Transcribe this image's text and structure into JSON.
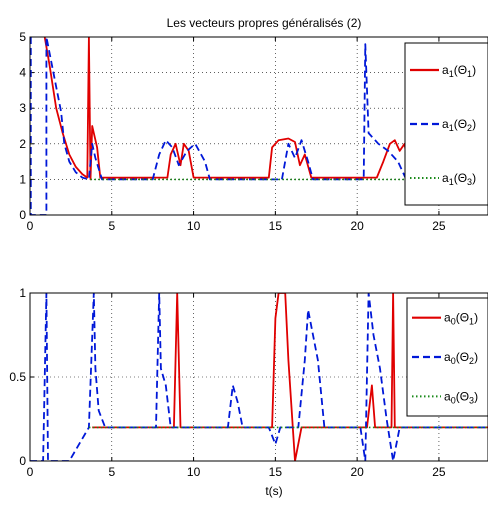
{
  "chart_data": [
    {
      "type": "line",
      "title": "Les vecteurs propres généralisés (2)",
      "xlabel": "",
      "ylabel": "",
      "xlim": [
        0,
        28
      ],
      "ylim": [
        0,
        5
      ],
      "xticks": [
        "0",
        "5",
        "10",
        "15",
        "20",
        "25"
      ],
      "yticks": [
        "0",
        "1",
        "2",
        "3",
        "4",
        "5"
      ],
      "grid": true,
      "legend_position": "top-right",
      "series": [
        {
          "name": "a1(Θ1)",
          "name_main": "a",
          "name_sub": "1",
          "name_arg": "Θ",
          "name_arg_sub": "1",
          "color": "#e00000",
          "style": "solid",
          "points": [
            [
              0.9,
              5
            ],
            [
              1.2,
              4.2
            ],
            [
              1.6,
              3.0
            ],
            [
              2.0,
              2.3
            ],
            [
              2.4,
              1.7
            ],
            [
              2.8,
              1.35
            ],
            [
              3.2,
              1.15
            ],
            [
              3.5,
              1.05
            ],
            [
              3.6,
              5
            ],
            [
              3.7,
              1.0
            ],
            [
              3.8,
              2.5
            ],
            [
              4.1,
              1.9
            ],
            [
              4.3,
              1.05
            ],
            [
              8.4,
              1.05
            ],
            [
              8.6,
              1.7
            ],
            [
              8.9,
              2.0
            ],
            [
              9.2,
              1.4
            ],
            [
              9.4,
              2.0
            ],
            [
              9.7,
              1.8
            ],
            [
              10.0,
              1.05
            ],
            [
              14.6,
              1.05
            ],
            [
              14.8,
              1.9
            ],
            [
              15.2,
              2.1
            ],
            [
              15.8,
              2.15
            ],
            [
              16.2,
              2.05
            ],
            [
              16.5,
              1.4
            ],
            [
              16.8,
              1.7
            ],
            [
              17.2,
              1.05
            ],
            [
              21.2,
              1.05
            ],
            [
              21.6,
              1.5
            ],
            [
              22.0,
              2.0
            ],
            [
              22.3,
              2.1
            ],
            [
              22.6,
              1.8
            ],
            [
              22.9,
              2.0
            ],
            [
              23.2,
              1.05
            ],
            [
              28,
              1.05
            ]
          ]
        },
        {
          "name": "a1(Θ2)",
          "name_main": "a",
          "name_sub": "1",
          "name_arg": "Θ",
          "name_arg_sub": "2",
          "color": "#0018d8",
          "style": "dashed",
          "points": [
            [
              0.05,
              5
            ],
            [
              0.05,
              0
            ],
            [
              0.5,
              0
            ],
            [
              1.0,
              0
            ],
            [
              1.0,
              5
            ],
            [
              1.9,
              2.9
            ],
            [
              2.1,
              2.0
            ],
            [
              2.4,
              1.5
            ],
            [
              2.8,
              1.2
            ],
            [
              3.2,
              1.05
            ],
            [
              3.6,
              1.0
            ],
            [
              3.8,
              2.0
            ],
            [
              4.0,
              1.6
            ],
            [
              4.4,
              1.0
            ],
            [
              7.5,
              1.0
            ],
            [
              7.9,
              1.7
            ],
            [
              8.3,
              2.1
            ],
            [
              8.7,
              1.9
            ],
            [
              9.1,
              1.4
            ],
            [
              9.6,
              1.8
            ],
            [
              10.1,
              2.0
            ],
            [
              10.7,
              1.5
            ],
            [
              11.0,
              1.0
            ],
            [
              15.4,
              1.0
            ],
            [
              15.8,
              2.0
            ],
            [
              16.2,
              1.6
            ],
            [
              16.6,
              2.1
            ],
            [
              17.0,
              1.5
            ],
            [
              17.3,
              1.0
            ],
            [
              20.4,
              1.0
            ],
            [
              20.5,
              4.8
            ],
            [
              20.7,
              2.3
            ],
            [
              21.3,
              2.0
            ],
            [
              21.9,
              1.8
            ],
            [
              22.5,
              1.5
            ],
            [
              23.0,
              1.0
            ],
            [
              28,
              1.0
            ]
          ]
        },
        {
          "name": "a1(Θ3)",
          "name_main": "a",
          "name_sub": "1",
          "name_arg": "Θ",
          "name_arg_sub": "3",
          "color": "#1a8a1a",
          "style": "dotted",
          "points": [
            [
              3.7,
              1.0
            ],
            [
              4.6,
              1.0
            ],
            [
              5.2,
              1.0
            ],
            [
              7.0,
              1.0
            ],
            [
              7.8,
              1.0
            ],
            [
              9.0,
              1.0
            ],
            [
              10.0,
              1.0
            ],
            [
              12.0,
              1.0
            ],
            [
              14.0,
              1.0
            ],
            [
              16.0,
              1.0
            ],
            [
              17.6,
              1.0
            ],
            [
              19.0,
              1.0
            ],
            [
              21.0,
              1.0
            ],
            [
              23.5,
              1.0
            ],
            [
              25.0,
              1.0
            ],
            [
              28,
              1.0
            ]
          ]
        }
      ]
    },
    {
      "type": "line",
      "title": "",
      "xlabel": "t(s)",
      "ylabel": "",
      "xlim": [
        0,
        28
      ],
      "ylim": [
        0,
        1
      ],
      "xticks": [
        "0",
        "5",
        "10",
        "15",
        "20",
        "25"
      ],
      "yticks": [
        "0",
        "0.5",
        "1"
      ],
      "grid": true,
      "legend_position": "top-right",
      "series": [
        {
          "name": "a0(Θ1)",
          "name_main": "a",
          "name_sub": "0",
          "name_arg": "Θ",
          "name_arg_sub": "1",
          "color": "#e00000",
          "style": "solid",
          "points": [
            [
              3.8,
              0.2
            ],
            [
              8.8,
              0.2
            ],
            [
              9.0,
              1.0
            ],
            [
              9.2,
              0.2
            ],
            [
              14.8,
              0.2
            ],
            [
              15.0,
              0.85
            ],
            [
              15.2,
              1.0
            ],
            [
              15.6,
              1.0
            ],
            [
              15.8,
              0.6
            ],
            [
              16.2,
              0.0
            ],
            [
              16.6,
              0.2
            ],
            [
              20.6,
              0.2
            ],
            [
              20.9,
              0.45
            ],
            [
              21.1,
              0.2
            ],
            [
              22.1,
              0.2
            ],
            [
              22.2,
              1.0
            ],
            [
              22.3,
              0.2
            ],
            [
              28,
              0.2
            ]
          ]
        },
        {
          "name": "a0(Θ2)",
          "name_main": "a",
          "name_sub": "0",
          "name_arg": "Θ",
          "name_arg_sub": "2",
          "color": "#0018d8",
          "style": "dashed",
          "points": [
            [
              0,
              0
            ],
            [
              0.8,
              0
            ],
            [
              1.0,
              1.0
            ],
            [
              1.1,
              0
            ],
            [
              2.4,
              0
            ],
            [
              3.0,
              0.1
            ],
            [
              3.6,
              0.2
            ],
            [
              3.9,
              1.0
            ],
            [
              4.0,
              0.55
            ],
            [
              4.2,
              0.3
            ],
            [
              4.6,
              0.2
            ],
            [
              7.7,
              0.2
            ],
            [
              7.9,
              1.0
            ],
            [
              8.0,
              0.55
            ],
            [
              8.3,
              0.45
            ],
            [
              8.6,
              0.2
            ],
            [
              9.8,
              0.2
            ],
            [
              10.0,
              0.2
            ],
            [
              12.1,
              0.2
            ],
            [
              12.4,
              0.45
            ],
            [
              12.7,
              0.35
            ],
            [
              13.0,
              0.2
            ],
            [
              14.6,
              0.2
            ],
            [
              15.0,
              0.1
            ],
            [
              15.3,
              0.2
            ],
            [
              16.4,
              0.2
            ],
            [
              16.8,
              0.6
            ],
            [
              17.0,
              0.9
            ],
            [
              17.3,
              0.75
            ],
            [
              17.6,
              0.6
            ],
            [
              18.0,
              0.2
            ],
            [
              20.2,
              0.2
            ],
            [
              20.5,
              0.0
            ],
            [
              20.7,
              1.0
            ],
            [
              21.0,
              0.75
            ],
            [
              21.4,
              0.55
            ],
            [
              21.8,
              0.25
            ],
            [
              22.2,
              0.0
            ],
            [
              22.6,
              0.2
            ],
            [
              28,
              0.2
            ]
          ]
        },
        {
          "name": "a0(Θ3)",
          "name_main": "a",
          "name_sub": "0",
          "name_arg": "Θ",
          "name_arg_sub": "3",
          "color": "#1a8a1a",
          "style": "dotted",
          "points": [
            [
              3.6,
              0.2
            ],
            [
              7.0,
              0.2
            ],
            [
              9.5,
              0.2
            ],
            [
              11.0,
              0.2
            ],
            [
              13.5,
              0.2
            ],
            [
              16.0,
              0.2
            ],
            [
              18.5,
              0.2
            ],
            [
              21.0,
              0.2
            ],
            [
              24.0,
              0.2
            ],
            [
              28,
              0.2
            ]
          ]
        }
      ]
    }
  ]
}
